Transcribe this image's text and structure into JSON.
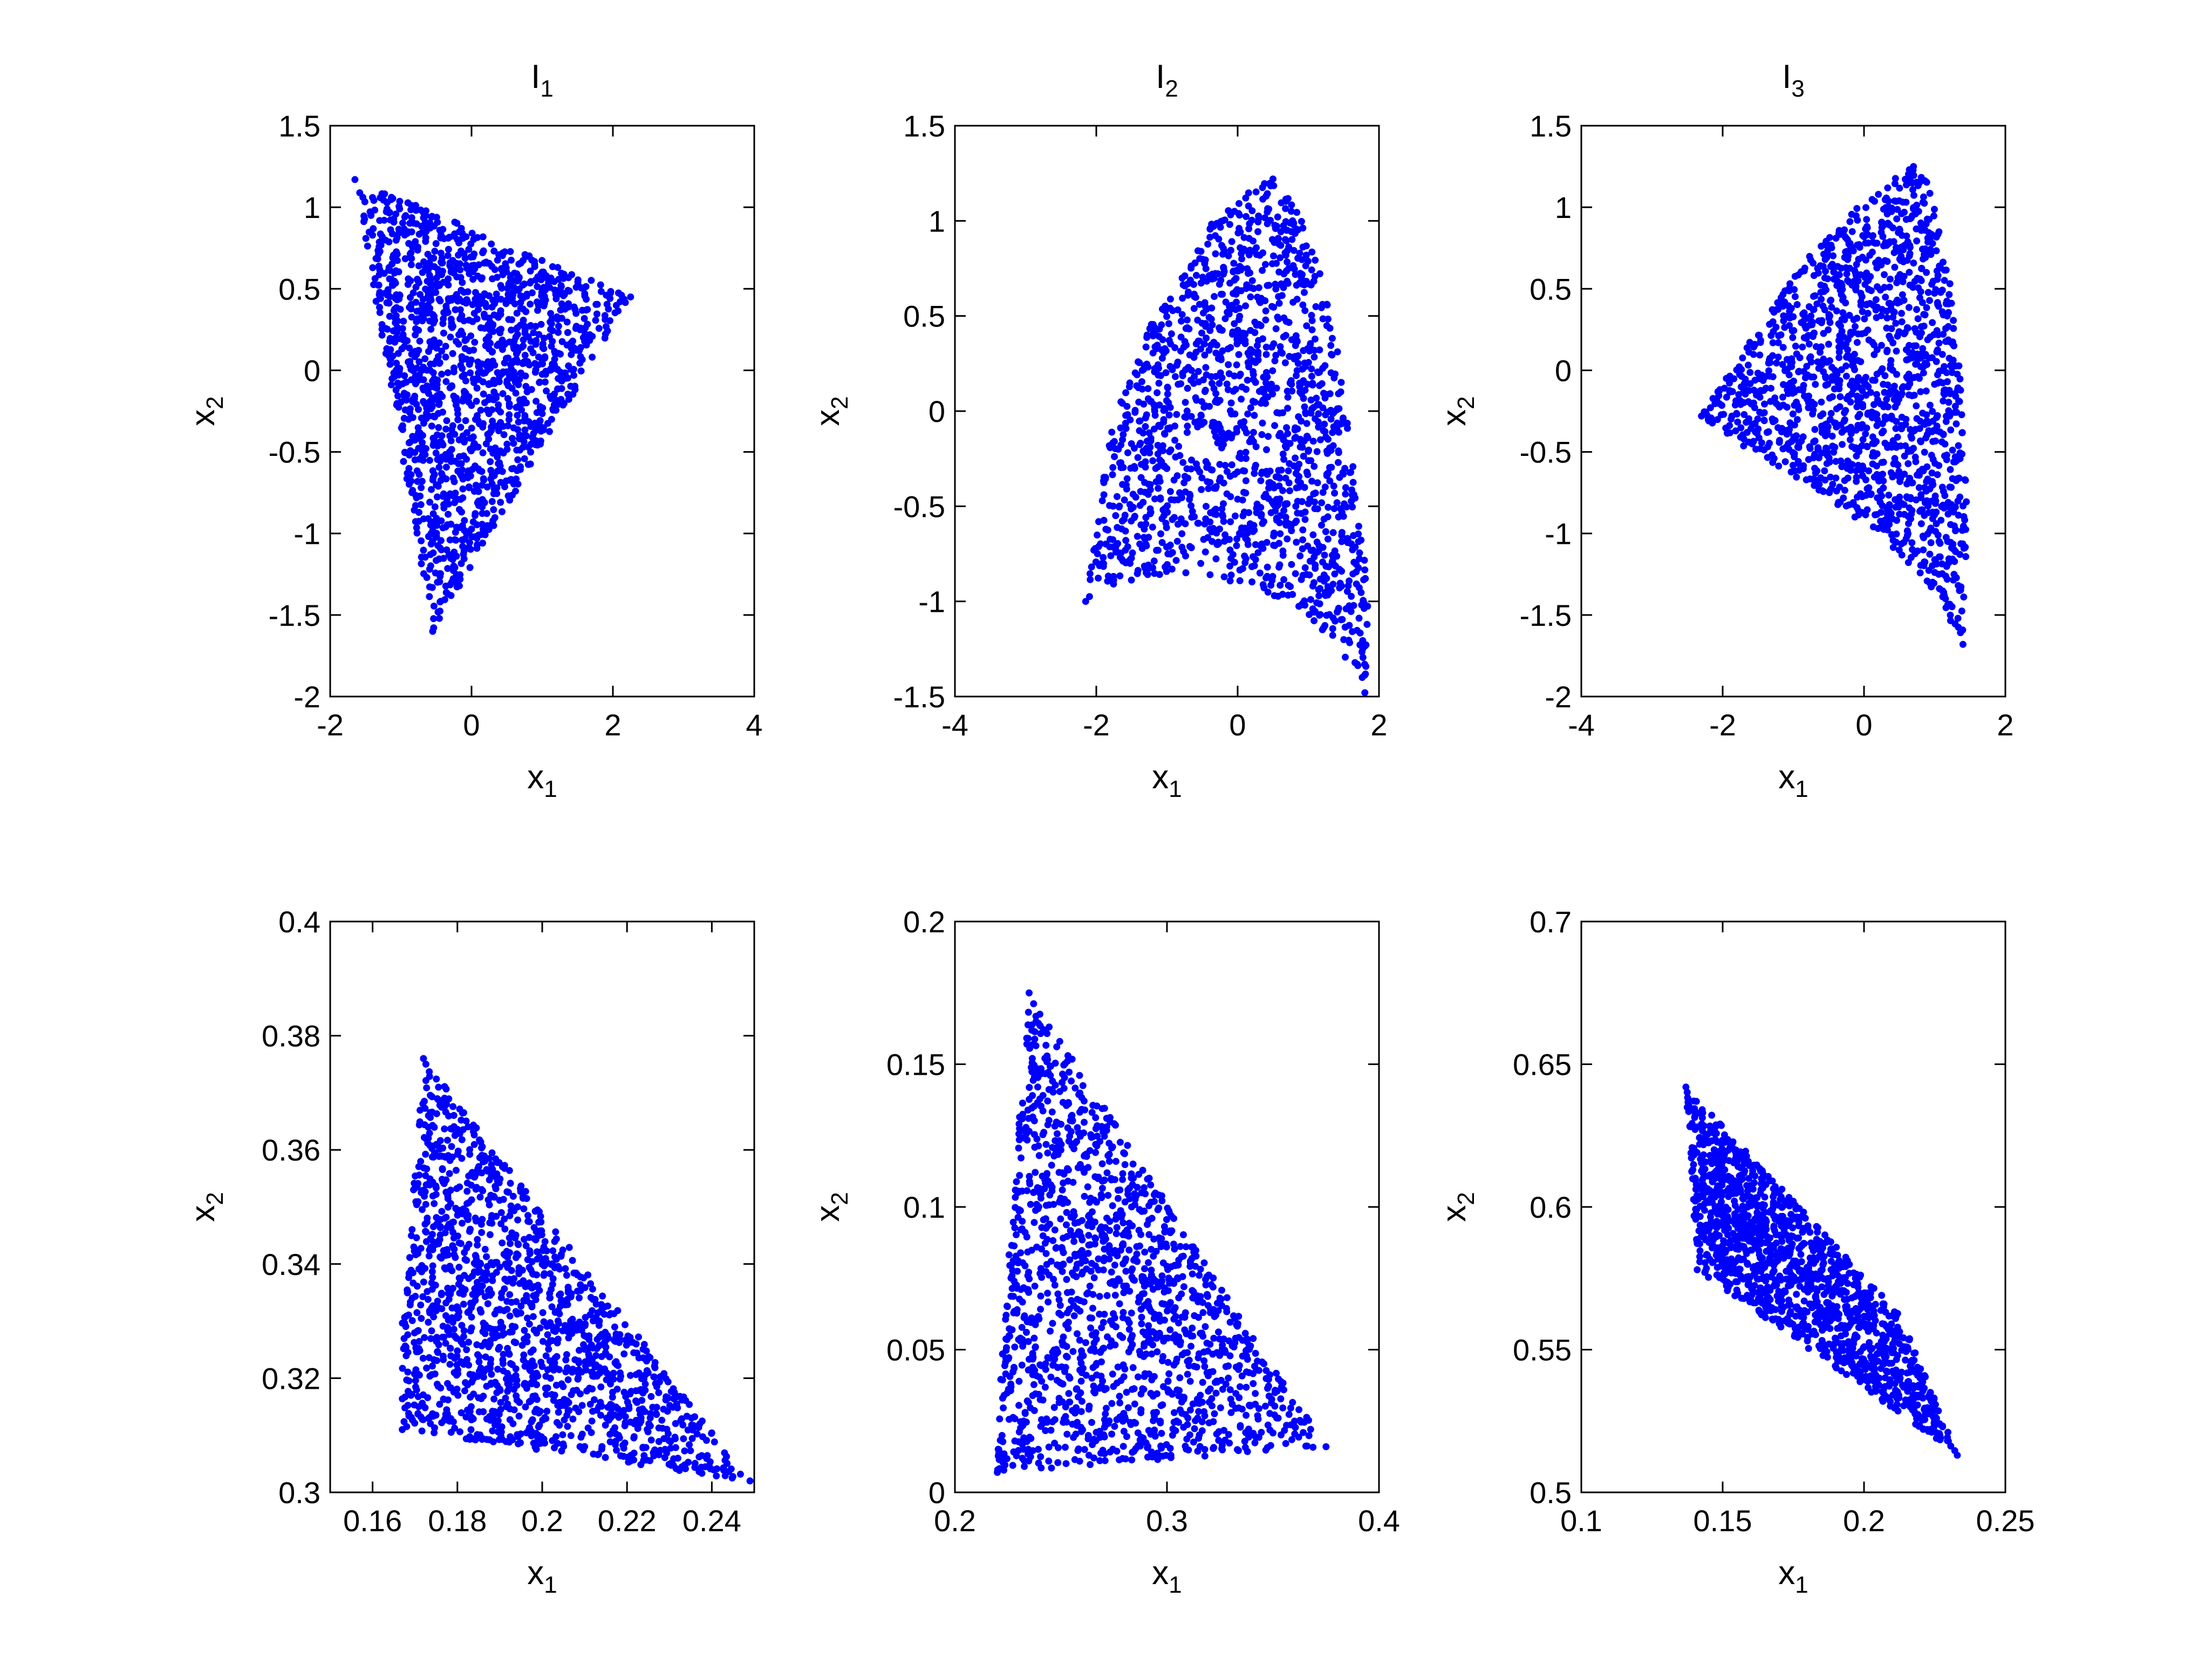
{
  "figure": {
    "layout": "2 rows x 3 columns",
    "point_color": "#0000ff",
    "axis_color": "#000000"
  },
  "chart_data": [
    {
      "type": "scatter",
      "title": "I_1",
      "title_main": "I",
      "title_sub": "1",
      "xlabel": "x_1",
      "xlabel_main": "x",
      "xlabel_sub": "1",
      "ylabel": "x_2",
      "ylabel_main": "x",
      "ylabel_sub": "2",
      "xlim": [
        -2,
        4
      ],
      "ylim": [
        -2,
        1.5
      ],
      "xticks": [
        -2,
        0,
        2,
        4
      ],
      "xtick_labels": [
        "-2",
        "0",
        "2",
        "4"
      ],
      "yticks": [
        -2,
        -1.5,
        -1,
        -0.5,
        0,
        0.5,
        1,
        1.5
      ],
      "ytick_labels": [
        "-2",
        "-1.5",
        "-1",
        "-0.5",
        "0",
        "0.5",
        "1",
        "1.5"
      ],
      "grid": false,
      "region_vertices": [
        [
          -1.65,
          1.17
        ],
        [
          2.25,
          0.45
        ],
        [
          -0.55,
          -1.6
        ]
      ],
      "point_count": 1500,
      "extreme_points": [
        [
          -1.65,
          1.17
        ],
        [
          2.25,
          0.45
        ],
        [
          -0.55,
          -1.6
        ]
      ]
    },
    {
      "type": "scatter",
      "title": "I_2",
      "title_main": "I",
      "title_sub": "2",
      "xlabel": "x_1",
      "xlabel_main": "x",
      "xlabel_sub": "1",
      "ylabel": "x_2",
      "ylabel_main": "x",
      "ylabel_sub": "2",
      "xlim": [
        -4,
        2
      ],
      "ylim": [
        -1.5,
        1.5
      ],
      "xticks": [
        -4,
        -2,
        0,
        2
      ],
      "xtick_labels": [
        "-4",
        "-2",
        "0",
        "2"
      ],
      "yticks": [
        -1.5,
        -1,
        -0.5,
        0,
        0.5,
        1,
        1.5
      ],
      "ytick_labels": [
        "-1.5",
        "-1",
        "-0.5",
        "0",
        "0.5",
        "1",
        "1.5"
      ],
      "grid": false,
      "region_vertices": [
        [
          -2.15,
          -1.0
        ],
        [
          -1.8,
          -0.1
        ],
        [
          -1.3,
          0.4
        ],
        [
          -0.6,
          0.9
        ],
        [
          0.0,
          1.12
        ],
        [
          0.5,
          1.22
        ],
        [
          0.9,
          1.05
        ],
        [
          1.2,
          0.7
        ],
        [
          1.45,
          0.25
        ],
        [
          1.6,
          -0.2
        ],
        [
          1.75,
          -0.6
        ],
        [
          1.85,
          -1.0
        ],
        [
          1.8,
          -1.48
        ],
        [
          1.3,
          -1.2
        ],
        [
          0.7,
          -1.0
        ],
        [
          0.0,
          -0.9
        ],
        [
          -1.0,
          -0.85
        ],
        [
          -1.6,
          -0.9
        ]
      ],
      "point_count": 1500,
      "extreme_points": [
        [
          -2.15,
          -1.0
        ],
        [
          0.5,
          1.22
        ],
        [
          1.8,
          -1.48
        ]
      ]
    },
    {
      "type": "scatter",
      "title": "I_3",
      "title_main": "I",
      "title_sub": "3",
      "xlabel": "x_1",
      "xlabel_main": "x",
      "xlabel_sub": "1",
      "ylabel": "x_2",
      "ylabel_main": "x",
      "ylabel_sub": "2",
      "xlim": [
        -4,
        2
      ],
      "ylim": [
        -2,
        1.5
      ],
      "xticks": [
        -4,
        -2,
        0,
        2
      ],
      "xtick_labels": [
        "-4",
        "-2",
        "0",
        "2"
      ],
      "yticks": [
        -2,
        -1.5,
        -1,
        -0.5,
        0,
        0.5,
        1,
        1.5
      ],
      "ytick_labels": [
        "-2",
        "-1.5",
        "-1",
        "-0.5",
        "0",
        "0.5",
        "1",
        "1.5"
      ],
      "grid": false,
      "region_vertices": [
        [
          -2.3,
          -0.28
        ],
        [
          -1.5,
          0.25
        ],
        [
          -0.7,
          0.75
        ],
        [
          0.0,
          1.05
        ],
        [
          0.7,
          1.25
        ],
        [
          1.0,
          1.1
        ],
        [
          1.2,
          0.6
        ],
        [
          1.35,
          0.0
        ],
        [
          1.45,
          -0.6
        ],
        [
          1.45,
          -1.3
        ],
        [
          1.4,
          -1.68
        ],
        [
          0.9,
          -1.3
        ],
        [
          0.2,
          -1.0
        ],
        [
          -0.8,
          -0.7
        ],
        [
          -1.6,
          -0.5
        ]
      ],
      "point_count": 1500,
      "extreme_points": [
        [
          -2.3,
          -0.28
        ],
        [
          0.7,
          1.25
        ],
        [
          1.4,
          -1.68
        ]
      ]
    },
    {
      "type": "scatter",
      "title": "",
      "xlabel": "x_1",
      "xlabel_main": "x",
      "xlabel_sub": "1",
      "ylabel": "x_2",
      "ylabel_main": "x",
      "ylabel_sub": "2",
      "xlim": [
        0.15,
        0.25
      ],
      "ylim": [
        0.3,
        0.4
      ],
      "xticks": [
        0.16,
        0.18,
        0.2,
        0.22,
        0.24
      ],
      "xtick_labels": [
        "0.16",
        "0.18",
        "0.2",
        "0.22",
        "0.24"
      ],
      "yticks": [
        0.3,
        0.32,
        0.34,
        0.36,
        0.38,
        0.4
      ],
      "ytick_labels": [
        "0.3",
        "0.32",
        "0.34",
        "0.36",
        "0.38",
        "0.4"
      ],
      "grid": false,
      "region_vertices": [
        [
          0.172,
          0.376
        ],
        [
          0.167,
          0.33
        ],
        [
          0.167,
          0.311
        ],
        [
          0.249,
          0.302
        ]
      ],
      "point_count": 1500,
      "extreme_points": [
        [
          0.172,
          0.376
        ],
        [
          0.167,
          0.311
        ],
        [
          0.249,
          0.302
        ]
      ]
    },
    {
      "type": "scatter",
      "title": "",
      "xlabel": "x_1",
      "xlabel_main": "x",
      "xlabel_sub": "1",
      "ylabel": "x_2",
      "ylabel_main": "x",
      "ylabel_sub": "2",
      "xlim": [
        0.2,
        0.4
      ],
      "ylim": [
        0,
        0.2
      ],
      "xticks": [
        0.2,
        0.3,
        0.4
      ],
      "xtick_labels": [
        "0.2",
        "0.3",
        "0.4"
      ],
      "yticks": [
        0,
        0.05,
        0.1,
        0.15,
        0.2
      ],
      "ytick_labels": [
        "0",
        "0.05",
        "0.1",
        "0.15",
        "0.2"
      ],
      "grid": false,
      "region_vertices": [
        [
          0.235,
          0.175
        ],
        [
          0.222,
          0.05
        ],
        [
          0.22,
          0.007
        ],
        [
          0.375,
          0.016
        ]
      ],
      "point_count": 1500,
      "extreme_points": [
        [
          0.235,
          0.175
        ],
        [
          0.22,
          0.007
        ],
        [
          0.375,
          0.016
        ]
      ]
    },
    {
      "type": "scatter",
      "title": "",
      "xlabel": "x_1",
      "xlabel_main": "x",
      "xlabel_sub": "1",
      "ylabel": "x_2",
      "ylabel_main": "x",
      "ylabel_sub": "2",
      "xlim": [
        0.1,
        0.25
      ],
      "ylim": [
        0.5,
        0.7
      ],
      "xticks": [
        0.1,
        0.15,
        0.2,
        0.25
      ],
      "xtick_labels": [
        "0.1",
        "0.15",
        "0.2",
        "0.25"
      ],
      "yticks": [
        0.5,
        0.55,
        0.6,
        0.65,
        0.7
      ],
      "ytick_labels": [
        "0.5",
        "0.55",
        "0.6",
        "0.65",
        "0.7"
      ],
      "grid": false,
      "region_vertices": [
        [
          0.137,
          0.642
        ],
        [
          0.213,
          0.562
        ],
        [
          0.233,
          0.513
        ],
        [
          0.141,
          0.578
        ]
      ],
      "point_count": 1500,
      "extreme_points": [
        [
          0.137,
          0.642
        ],
        [
          0.141,
          0.578
        ],
        [
          0.233,
          0.513
        ]
      ]
    }
  ]
}
